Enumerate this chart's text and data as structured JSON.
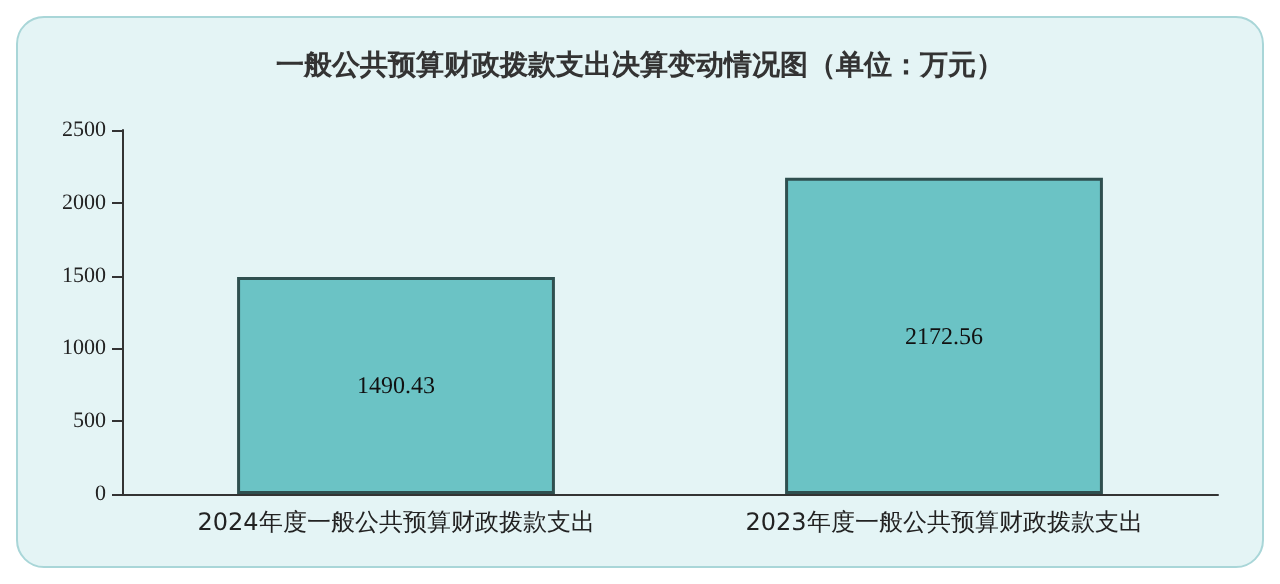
{
  "chart_data": {
    "type": "bar",
    "title": "一般公共预算财政拨款支出决算变动情况图（单位：万元）",
    "categories": [
      "2024年度一般公共预算财政拨款支出",
      "2023年度一般公共预算财政拨款支出"
    ],
    "values": [
      1490.43,
      2172.56
    ],
    "color": "#6bc3c5",
    "data_labels": true,
    "ylim": [
      0,
      2500
    ],
    "yticks": [
      0,
      500,
      1000,
      1500,
      2000,
      2500
    ],
    "grid": false
  }
}
